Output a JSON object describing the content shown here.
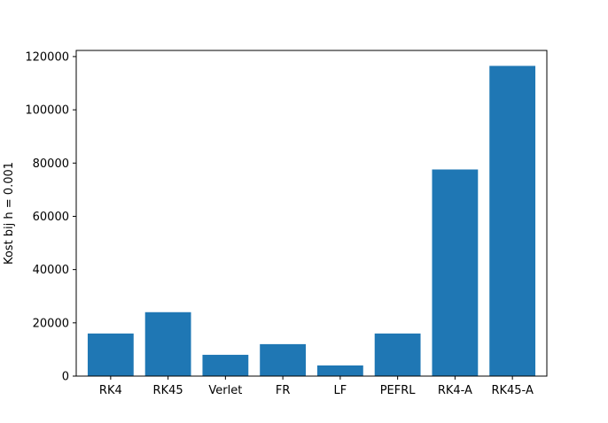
{
  "chart_data": {
    "type": "bar",
    "title": "",
    "xlabel": "",
    "ylabel": "Kost bij h = 0.001",
    "categories": [
      "RK4",
      "RK45",
      "Verlet",
      "FR",
      "LF",
      "PEFRL",
      "RK4-A",
      "RK45-A"
    ],
    "values": [
      16000,
      24000,
      8000,
      12000,
      4000,
      16000,
      77600,
      116500
    ],
    "ylim": [
      0,
      122300
    ],
    "yticks": [
      0,
      20000,
      40000,
      60000,
      80000,
      100000,
      120000
    ],
    "ytick_labels": [
      "0",
      "20000",
      "40000",
      "60000",
      "80000",
      "100000",
      "120000"
    ],
    "grid": false,
    "bar_color": "#1f77b4"
  }
}
